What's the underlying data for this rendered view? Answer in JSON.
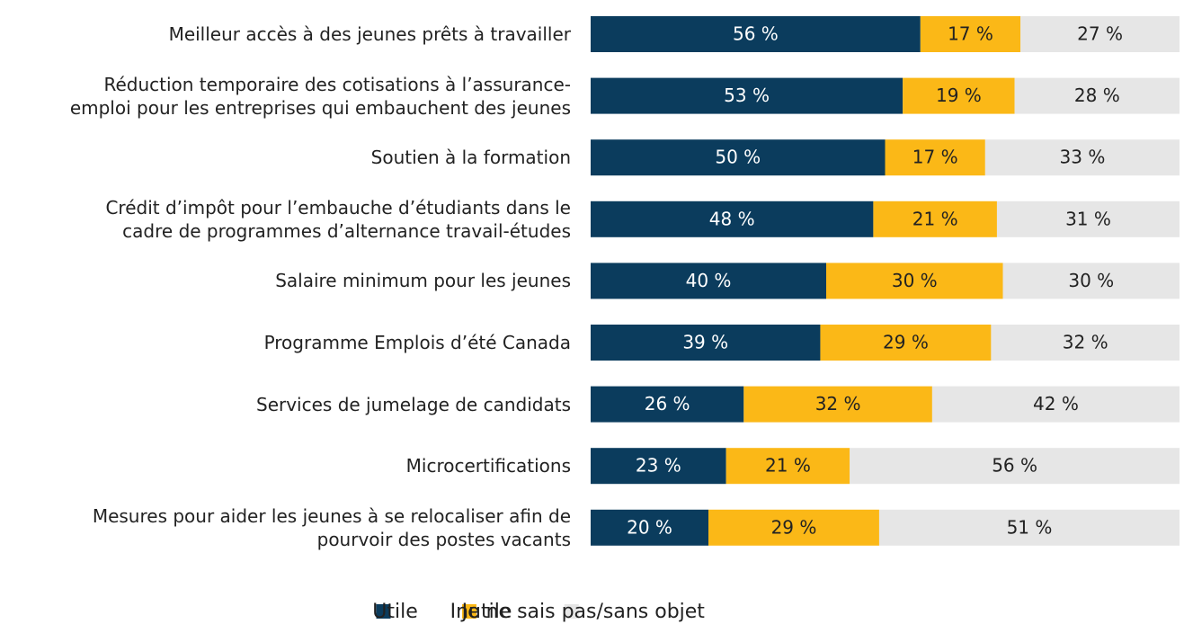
{
  "chart_data": {
    "type": "stacked_barh",
    "categories": [
      "Meilleur accès à des jeunes prêts à travailler",
      "Réduction temporaire des cotisations à l’assurance-\nemploi pour les entreprises qui embauchent des jeunes",
      "Soutien à la formation",
      "Crédit d’impôt pour l’embauche d’étudiants dans le\ncadre de programmes d’alternance travail-études",
      "Salaire minimum pour les jeunes",
      "Programme Emplois d’été Canada",
      "Services de jumelage de candidats",
      "Microcertifications",
      "Mesures pour aider les jeunes à se relocaliser afin de\npourvoir des postes vacants"
    ],
    "series": [
      {
        "name": "Utile",
        "color": "#0b3c5d",
        "values": [
          56,
          53,
          50,
          48,
          40,
          39,
          26,
          23,
          20
        ],
        "value_labels": [
          "56 %",
          "53 %",
          "50 %",
          "48 %",
          "40 %",
          "39 %",
          "26 %",
          "23 %",
          "20 %"
        ]
      },
      {
        "name": "Inutile",
        "color": "#fbb817",
        "values": [
          17,
          19,
          17,
          21,
          30,
          29,
          32,
          21,
          29
        ],
        "value_labels": [
          "17 %",
          "19 %",
          "17 %",
          "21 %",
          "30 %",
          "29 %",
          "32 %",
          "21 %",
          "29 %"
        ]
      },
      {
        "name": "Je ne sais pas/sans objet",
        "color": "#e6e6e6",
        "values": [
          27,
          28,
          33,
          31,
          30,
          32,
          42,
          56,
          51
        ],
        "value_labels": [
          "27 %",
          "28 %",
          "33 %",
          "31 %",
          "30 %",
          "32 %",
          "42 %",
          "56 %",
          "51 %"
        ]
      }
    ],
    "xlim": [
      0,
      100
    ]
  }
}
